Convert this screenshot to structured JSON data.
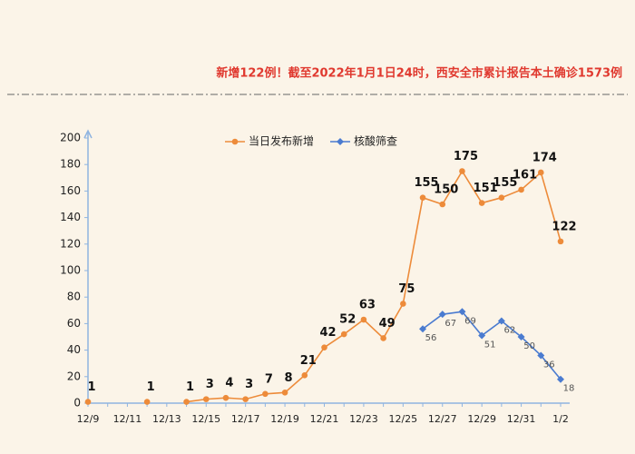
{
  "chart_data": {
    "type": "line",
    "subtitle": "新增122例！截至2022年1月1日24时，西安全市累计报告本土确诊1573例",
    "categories": [
      "12/9",
      null,
      "12/11",
      null,
      "12/13",
      null,
      "12/15",
      null,
      "12/17",
      null,
      "12/19",
      null,
      "12/21",
      null,
      "12/23",
      null,
      "12/25",
      null,
      "12/27",
      null,
      "12/29",
      null,
      "12/31",
      null,
      "1/2"
    ],
    "series": [
      {
        "name": "当日发布新增",
        "color": "#ed8b3a",
        "values": [
          1,
          null,
          null,
          1,
          null,
          1,
          3,
          4,
          3,
          7,
          8,
          21,
          42,
          52,
          63,
          49,
          75,
          155,
          150,
          175,
          151,
          155,
          161,
          174,
          122
        ]
      },
      {
        "name": "核酸筛查",
        "color": "#4a7bd0",
        "values": [
          null,
          null,
          null,
          null,
          null,
          null,
          null,
          null,
          null,
          null,
          null,
          null,
          null,
          null,
          null,
          null,
          null,
          56,
          67,
          69,
          51,
          62,
          50,
          36,
          18
        ]
      }
    ],
    "ylim": [
      0,
      200
    ],
    "yticks": [
      0,
      20,
      40,
      60,
      80,
      100,
      120,
      140,
      160,
      180,
      200
    ]
  }
}
